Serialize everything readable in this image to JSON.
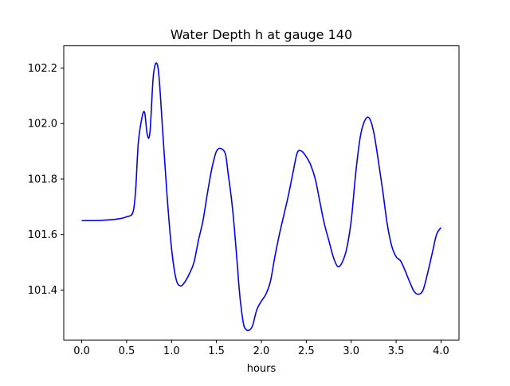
{
  "chart_data": {
    "type": "line",
    "title": "Water Depth h at gauge 140",
    "xlabel": "hours",
    "ylabel": "",
    "xlim": [
      -0.2,
      4.2
    ],
    "ylim": [
      101.22,
      102.28
    ],
    "xticks": [
      0.0,
      0.5,
      1.0,
      1.5,
      2.0,
      2.5,
      3.0,
      3.5,
      4.0
    ],
    "xtick_labels": [
      "0.0",
      "0.5",
      "1.0",
      "1.5",
      "2.0",
      "2.5",
      "3.0",
      "3.5",
      "4.0"
    ],
    "yticks": [
      101.4,
      101.6,
      101.8,
      102.0,
      102.2
    ],
    "ytick_labels": [
      "101.4",
      "101.6",
      "101.8",
      "102.0",
      "102.2"
    ],
    "grid": false,
    "series": [
      {
        "color": "#0000ff",
        "x": [
          0.0,
          0.2,
          0.4,
          0.5,
          0.57,
          0.6,
          0.63,
          0.67,
          0.7,
          0.73,
          0.76,
          0.8,
          0.85,
          0.9,
          0.95,
          1.0,
          1.05,
          1.1,
          1.15,
          1.2,
          1.25,
          1.3,
          1.35,
          1.4,
          1.45,
          1.5,
          1.55,
          1.6,
          1.63,
          1.67,
          1.7,
          1.73,
          1.76,
          1.8,
          1.83,
          1.86,
          1.9,
          1.95,
          2.0,
          2.05,
          2.1,
          2.15,
          2.2,
          2.25,
          2.3,
          2.35,
          2.4,
          2.45,
          2.5,
          2.55,
          2.6,
          2.65,
          2.7,
          2.75,
          2.8,
          2.85,
          2.9,
          2.95,
          3.0,
          3.05,
          3.1,
          3.15,
          3.2,
          3.25,
          3.3,
          3.35,
          3.4,
          3.45,
          3.5,
          3.55,
          3.6,
          3.65,
          3.7,
          3.75,
          3.8,
          3.85,
          3.9,
          3.95,
          4.0
        ],
        "y": [
          101.65,
          101.651,
          101.656,
          101.664,
          101.68,
          101.76,
          101.93,
          102.02,
          102.04,
          101.96,
          101.97,
          102.18,
          102.2,
          101.98,
          101.74,
          101.55,
          101.44,
          101.415,
          101.43,
          101.46,
          101.5,
          101.58,
          101.65,
          101.75,
          101.84,
          101.9,
          101.91,
          101.89,
          101.82,
          101.72,
          101.62,
          101.5,
          101.38,
          101.28,
          101.258,
          101.255,
          101.27,
          101.33,
          101.36,
          101.385,
          101.43,
          101.52,
          101.6,
          101.67,
          101.74,
          101.82,
          101.895,
          101.9,
          101.88,
          101.85,
          101.8,
          101.72,
          101.64,
          101.58,
          101.52,
          101.485,
          101.5,
          101.55,
          101.65,
          101.82,
          101.95,
          102.01,
          102.02,
          101.97,
          101.87,
          101.76,
          101.64,
          101.56,
          101.52,
          101.505,
          101.47,
          101.43,
          101.395,
          101.385,
          101.4,
          101.46,
          101.53,
          101.6,
          101.625
        ]
      }
    ]
  }
}
